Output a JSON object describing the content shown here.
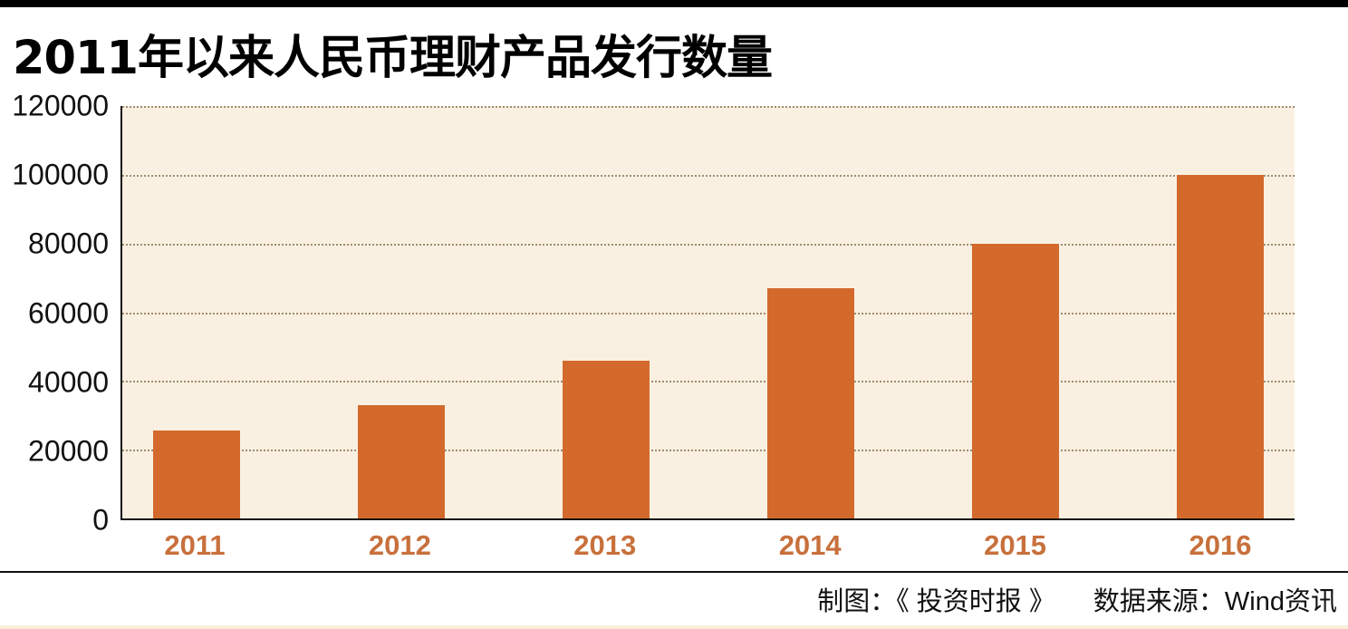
{
  "page": {
    "title": "2011年以来人民币理财产品发行数量"
  },
  "footer": {
    "credit_label": "制图：《 投资时报 》",
    "source_label": "数据来源：Wind资讯"
  },
  "colors": {
    "bar": "#D36A2C",
    "plot_background": "#FAF0E2",
    "gridline_dots": "#A08C6E",
    "x_label_orange": "#C8703C",
    "axis_and_text": "#111111",
    "top_bar": "#000000",
    "bottom_strip": "#FBEEDC"
  },
  "chart_data": {
    "type": "bar",
    "title": "2011年以来人民币理财产品发行数量",
    "categories": [
      "2011",
      "2012",
      "2013",
      "2014",
      "2015",
      "2016"
    ],
    "values": [
      25500,
      33000,
      46000,
      67000,
      80000,
      100000
    ],
    "xlabel": "",
    "ylabel": "",
    "ylim": [
      0,
      120000
    ],
    "yticks": [
      0,
      20000,
      40000,
      60000,
      80000,
      100000,
      120000
    ],
    "grid": "horizontal dotted lines at each y tick",
    "legend": "none",
    "bar_color": "#D36A2C"
  }
}
